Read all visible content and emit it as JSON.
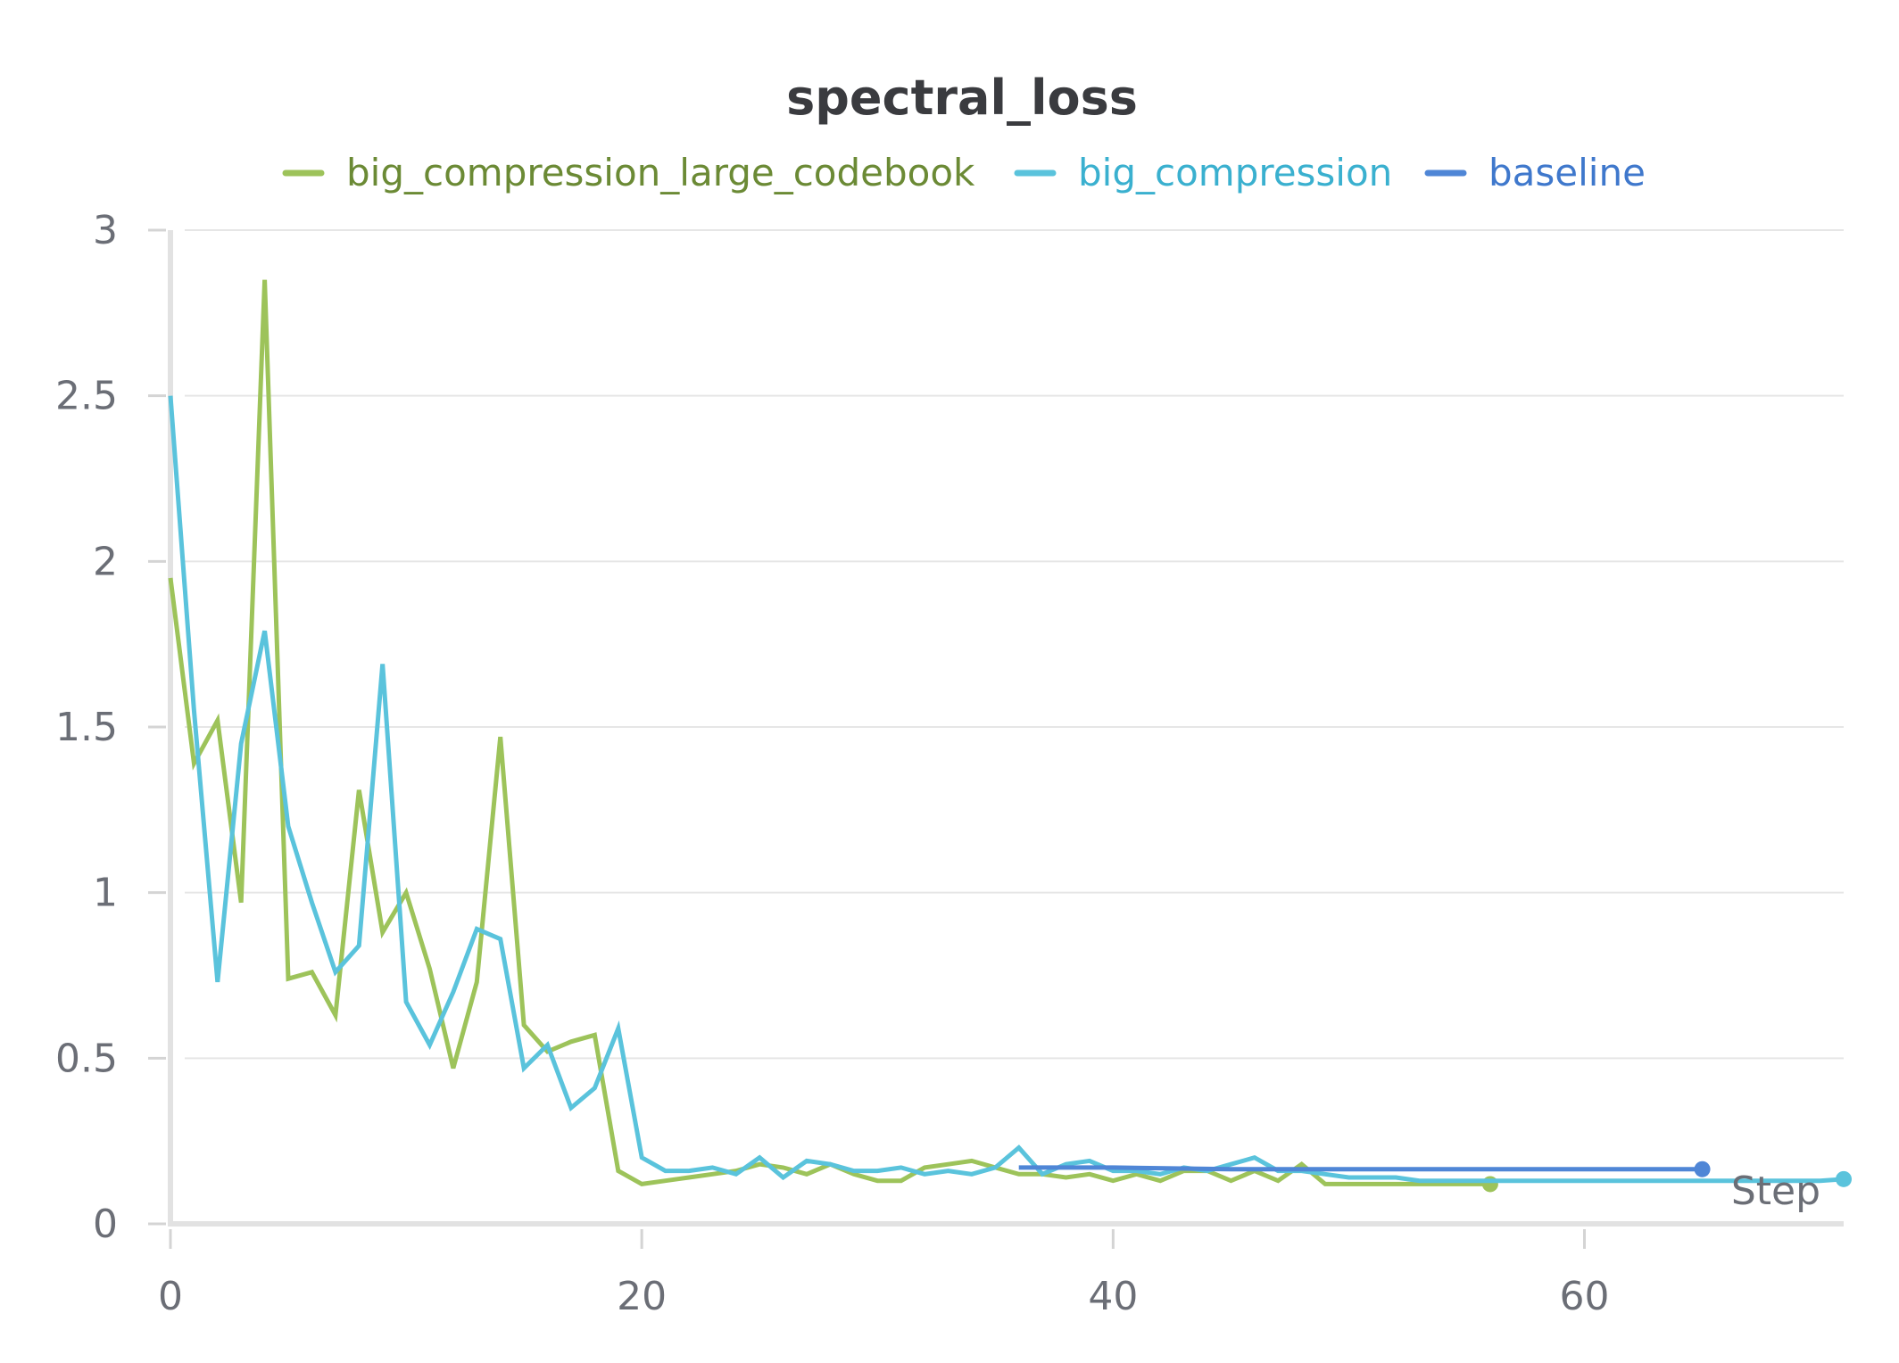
{
  "chart_data": {
    "type": "line",
    "title": "spectral_loss",
    "xlabel": "Step",
    "ylabel": "",
    "xlim": [
      0,
      71
    ],
    "ylim": [
      0,
      3
    ],
    "xticks": [
      0,
      20,
      40,
      60
    ],
    "yticks": [
      0,
      0.5,
      1,
      1.5,
      2,
      2.5,
      3
    ],
    "ytick_labels": [
      "0",
      "0.5",
      "1",
      "1.5",
      "2",
      "2.5",
      "3"
    ],
    "grid": true,
    "legend_placement": "top",
    "series": [
      {
        "name": "big_compression_large_codebook",
        "color": "#9dc35a",
        "label_color": "#6b8a35",
        "end_marker": true,
        "x": [
          0,
          1,
          2,
          3,
          4,
          5,
          6,
          7,
          8,
          9,
          10,
          11,
          12,
          13,
          14,
          15,
          16,
          17,
          18,
          19,
          20,
          21,
          22,
          23,
          24,
          25,
          26,
          27,
          28,
          29,
          30,
          31,
          32,
          33,
          34,
          35,
          36,
          37,
          38,
          39,
          40,
          41,
          42,
          43,
          44,
          45,
          46,
          47,
          48,
          49,
          50,
          51,
          52,
          53,
          54,
          55,
          56
        ],
        "y": [
          1.95,
          1.39,
          1.52,
          0.97,
          2.85,
          0.74,
          0.76,
          0.63,
          1.31,
          0.88,
          1.0,
          0.77,
          0.47,
          0.73,
          1.47,
          0.6,
          0.52,
          0.55,
          0.57,
          0.16,
          0.12,
          0.13,
          0.14,
          0.15,
          0.16,
          0.18,
          0.17,
          0.15,
          0.18,
          0.15,
          0.13,
          0.13,
          0.17,
          0.18,
          0.19,
          0.17,
          0.15,
          0.15,
          0.14,
          0.15,
          0.13,
          0.15,
          0.13,
          0.16,
          0.16,
          0.13,
          0.16,
          0.13,
          0.18,
          0.12,
          0.12,
          0.12,
          0.12,
          0.12,
          0.12,
          0.12,
          0.12
        ]
      },
      {
        "name": "big_compression",
        "color": "#5ac3dc",
        "label_color": "#3ab0cf",
        "end_marker": true,
        "x": [
          0,
          1,
          2,
          3,
          4,
          5,
          6,
          7,
          8,
          9,
          10,
          11,
          12,
          13,
          14,
          15,
          16,
          17,
          18,
          19,
          20,
          21,
          22,
          23,
          24,
          25,
          26,
          27,
          28,
          29,
          30,
          31,
          32,
          33,
          34,
          35,
          36,
          37,
          38,
          39,
          40,
          41,
          42,
          43,
          44,
          45,
          46,
          47,
          48,
          49,
          50,
          51,
          52,
          53,
          54,
          55,
          56,
          57,
          58,
          59,
          60,
          61,
          62,
          63,
          64,
          65,
          66,
          67,
          68,
          69,
          70,
          71
        ],
        "y": [
          2.5,
          1.55,
          0.73,
          1.45,
          1.79,
          1.2,
          0.97,
          0.76,
          0.84,
          1.69,
          0.67,
          0.54,
          0.7,
          0.89,
          0.86,
          0.47,
          0.54,
          0.35,
          0.41,
          0.59,
          0.2,
          0.16,
          0.16,
          0.17,
          0.15,
          0.2,
          0.14,
          0.19,
          0.18,
          0.16,
          0.16,
          0.17,
          0.15,
          0.16,
          0.15,
          0.17,
          0.23,
          0.15,
          0.18,
          0.19,
          0.16,
          0.16,
          0.15,
          0.17,
          0.16,
          0.18,
          0.2,
          0.16,
          0.16,
          0.15,
          0.14,
          0.14,
          0.14,
          0.13,
          0.13,
          0.13,
          0.13,
          0.13,
          0.13,
          0.13,
          0.13,
          0.13,
          0.13,
          0.13,
          0.13,
          0.13,
          0.13,
          0.13,
          0.13,
          0.13,
          0.13,
          0.135
        ]
      },
      {
        "name": "baseline",
        "color": "#4f86d6",
        "label_color": "#3f78cc",
        "end_marker": true,
        "x": [
          36,
          40,
          45,
          50,
          55,
          60,
          65
        ],
        "y": [
          0.17,
          0.17,
          0.165,
          0.165,
          0.165,
          0.165,
          0.165
        ]
      }
    ]
  }
}
